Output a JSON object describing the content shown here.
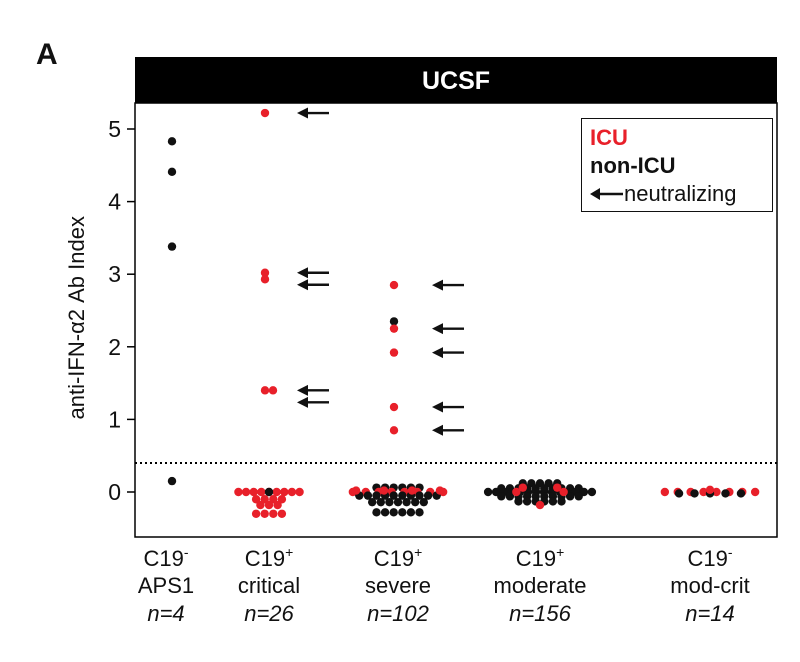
{
  "panel_label": "A",
  "chart_data": {
    "type": "scatter",
    "title": "UCSF",
    "ylabel": "anti-IFN-α2 Ab Index",
    "ylim": [
      -0.45,
      5.4
    ],
    "yticks": [
      0,
      1,
      2,
      3,
      4,
      5
    ],
    "threshold": 0.4,
    "colors": {
      "icu": "#e8202a",
      "non_icu": "#111111"
    },
    "legend": {
      "icu": "ICU",
      "non_icu": "non-ICU",
      "neutralizing": "neutralizing",
      "placement": "top-right"
    },
    "groups": [
      {
        "label": "C19",
        "sup": "-",
        "sub": "APS1",
        "n": "n=4",
        "points": [
          {
            "y": 4.83,
            "c": "non_icu"
          },
          {
            "y": 4.41,
            "c": "non_icu"
          },
          {
            "y": 3.38,
            "c": "non_icu"
          },
          {
            "y": 0.15,
            "c": "non_icu"
          }
        ]
      },
      {
        "label": "C19",
        "sup": "+",
        "sub": "critical",
        "n": "n=26",
        "points": [
          {
            "y": 5.22,
            "c": "icu",
            "neut": true
          },
          {
            "y": 3.02,
            "c": "icu",
            "neut": true
          },
          {
            "y": 2.93,
            "c": "icu",
            "neut": true
          },
          {
            "y": 1.4,
            "c": "icu",
            "neut": true
          },
          {
            "y": 1.4,
            "c": "icu",
            "neut": true
          }
        ],
        "cluster": [
          {
            "y": 0.0,
            "c": "icu",
            "k": 9,
            "w": 8
          },
          {
            "y": 0.0,
            "c": "non_icu",
            "k": 1,
            "w": 0
          },
          {
            "y": -0.1,
            "c": "icu",
            "k": 4,
            "w": 4
          },
          {
            "y": -0.18,
            "c": "icu",
            "k": 3,
            "w": 3
          },
          {
            "y": -0.3,
            "c": "icu",
            "k": 4,
            "w": 4
          }
        ]
      },
      {
        "label": "C19",
        "sup": "+",
        "sub": "severe",
        "n": "n=102",
        "points": [
          {
            "y": 2.85,
            "c": "icu",
            "neut": true
          },
          {
            "y": 2.35,
            "c": "non_icu",
            "neut": false
          },
          {
            "y": 2.25,
            "c": "icu",
            "neut": true
          },
          {
            "y": 1.92,
            "c": "icu",
            "neut": true
          },
          {
            "y": 1.17,
            "c": "icu",
            "neut": true
          },
          {
            "y": 0.85,
            "c": "icu",
            "neut": true
          }
        ],
        "cluster": [
          {
            "y": 0.06,
            "c": "non_icu",
            "k": 6,
            "w": 6
          },
          {
            "y": 0.0,
            "c": "icu",
            "k": 8,
            "w": 12
          },
          {
            "y": -0.05,
            "c": "non_icu",
            "k": 10,
            "w": 10
          },
          {
            "y": -0.14,
            "c": "non_icu",
            "k": 7,
            "w": 7
          },
          {
            "y": -0.28,
            "c": "non_icu",
            "k": 6,
            "w": 6
          },
          {
            "y": 0.02,
            "c": "icu",
            "k": 4,
            "w": 13
          }
        ]
      },
      {
        "label": "C19",
        "sup": "+",
        "sub": "moderate",
        "n": "n=156",
        "points": [],
        "cluster": [
          {
            "y": 0.12,
            "c": "non_icu",
            "k": 5,
            "w": 5
          },
          {
            "y": 0.05,
            "c": "non_icu",
            "k": 10,
            "w": 10
          },
          {
            "y": 0.0,
            "c": "non_icu",
            "k": 14,
            "w": 13
          },
          {
            "y": -0.06,
            "c": "non_icu",
            "k": 10,
            "w": 10
          },
          {
            "y": -0.13,
            "c": "non_icu",
            "k": 6,
            "w": 6
          },
          {
            "y": 0.06,
            "c": "icu",
            "k": 2,
            "w": 8
          },
          {
            "y": -0.18,
            "c": "icu",
            "k": 1,
            "w": 0
          },
          {
            "y": 0.0,
            "c": "icu",
            "k": 2,
            "w": 11
          }
        ]
      },
      {
        "label": "C19",
        "sup": "-",
        "sub": "mod-crit",
        "n": "n=14",
        "points": [],
        "cluster": [
          {
            "y": 0.0,
            "c": "icu",
            "k": 8,
            "w": 12
          },
          {
            "y": -0.02,
            "c": "non_icu",
            "k": 5,
            "w": 9
          },
          {
            "y": 0.03,
            "c": "icu",
            "k": 1,
            "w": 0
          }
        ]
      }
    ]
  }
}
